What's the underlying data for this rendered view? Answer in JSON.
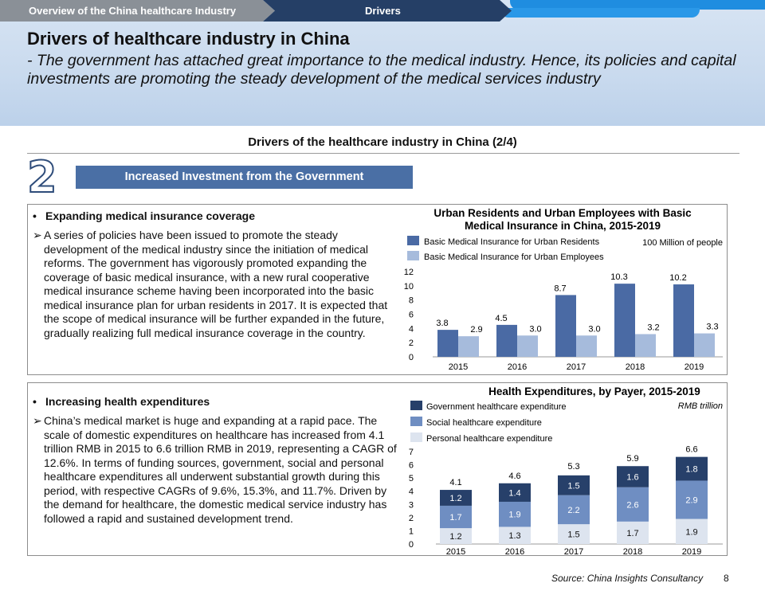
{
  "header": {
    "breadcrumb": [
      "Overview of the China healthcare Industry",
      "Drivers"
    ],
    "title": "Drivers of healthcare industry in China",
    "subtitle": "- The government has attached great importance to the medical industry. Hence, its policies and capital investments are promoting the steady development of the medical services industry"
  },
  "section": {
    "title": "Drivers of the healthcare industry in China (2/4)",
    "number": "2",
    "banner": "Increased Investment from the Government"
  },
  "panel1": {
    "bullet": "•",
    "heading": "Expanding medical insurance coverage",
    "arrow": "➢",
    "text": "A series of policies have been issued to promote the steady development of the medical industry since the initiation of medical reforms. The government has vigorously promoted expanding the coverage of basic medical insurance, with a new rural cooperative medical insurance scheme having been incorporated into the basic medical insurance plan for urban residents in 2017. It is expected that the scope of medical insurance will be further expanded in the future, gradually realizing full medical insurance coverage in the country."
  },
  "panel2": {
    "bullet": "•",
    "heading": "Increasing health expenditures",
    "arrow": "➢",
    "text": "China’s medical market is huge and expanding at a rapid pace. The scale of domestic expenditures on healthcare has increased from 4.1 trillion RMB in 2015 to 6.6 trillion RMB in 2019, representing a CAGR of 12.6%. In terms of funding sources, government, social and personal healthcare expenditures all underwent substantial growth during this period, with respective CAGRs of 9.6%, 15.3%, and 11.7%. Driven by the demand for healthcare, the domestic medical service industry has followed a rapid and sustained development trend."
  },
  "chart_data": [
    {
      "type": "bar",
      "title": "Urban Residents and Urban Employees with Basic Medical Insurance in China, 2015-2019",
      "title_lines": [
        "Urban Residents and Urban Employees with Basic",
        "Medical Insurance in China, 2015-2019"
      ],
      "unit": "100 Million of people",
      "categories": [
        "2015",
        "2016",
        "2017",
        "2018",
        "2019"
      ],
      "series": [
        {
          "name": "Basic Medical Insurance for Urban Residents",
          "values": [
            3.8,
            4.5,
            8.7,
            10.3,
            10.2
          ],
          "labels": [
            "3.8",
            "4.5",
            "8.7",
            "10.3",
            "10.2"
          ],
          "color": "#4a6aa4"
        },
        {
          "name": "Basic Medical Insurance for Urban Employees",
          "values": [
            2.9,
            3.0,
            3.0,
            3.2,
            3.3
          ],
          "labels": [
            "2.9",
            "3.0",
            "3.0",
            "3.2",
            "3.3"
          ],
          "color": "#a6bbdc"
        }
      ],
      "yticks": [
        "0",
        "2",
        "4",
        "6",
        "8",
        "10",
        "12"
      ],
      "ylim": [
        0,
        12
      ]
    },
    {
      "type": "stacked-bar",
      "title": "Health Expenditures, by Payer, 2015-2019",
      "unit": "RMB trillion",
      "categories": [
        "2015",
        "2016",
        "2017",
        "2018",
        "2019"
      ],
      "series": [
        {
          "name": "Personal healthcare expenditure",
          "values": [
            1.2,
            1.3,
            1.5,
            1.7,
            1.9
          ],
          "labels": [
            "1.2",
            "1.3",
            "1.5",
            "1.7",
            "1.9"
          ],
          "color": "#dde4ef"
        },
        {
          "name": "Social healthcare expenditure",
          "values": [
            1.7,
            1.9,
            2.2,
            2.6,
            2.9
          ],
          "labels": [
            "1.7",
            "1.9",
            "2.2",
            "2.6",
            "2.9"
          ],
          "color": "#6f8ec2"
        },
        {
          "name": "Government healthcare expenditure",
          "values": [
            1.2,
            1.4,
            1.5,
            1.6,
            1.8
          ],
          "labels": [
            "1.2",
            "1.4",
            "1.5",
            "1.6",
            "1.8"
          ],
          "color": "#27406a"
        }
      ],
      "legend_order": [
        2,
        1,
        0
      ],
      "totals": [
        "4.1",
        "4.6",
        "5.3",
        "5.9",
        "6.6"
      ],
      "total_values": [
        4.1,
        4.6,
        5.3,
        5.9,
        6.6
      ],
      "yticks": [
        "0",
        "1",
        "2",
        "3",
        "4",
        "5",
        "6",
        "7"
      ],
      "ylim": [
        0,
        7
      ]
    }
  ],
  "footer": {
    "source": "Source: China Insights Consultancy",
    "page": "8"
  }
}
